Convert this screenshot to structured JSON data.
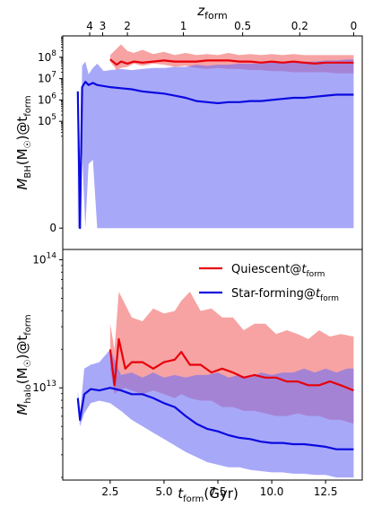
{
  "chart_data": [
    {
      "type": "line",
      "panel": "top",
      "ylabel": "M_BH(M☉)@t_form",
      "ylabel_parts": {
        "base": "M",
        "sub": "BH",
        "mid": "(M",
        "sun": "☉",
        "mid2": ")@t",
        "sub2": "form"
      },
      "xlim": [
        0.3,
        14.2
      ],
      "yscale": "symlog",
      "ylim": [
        -1,
        9
      ],
      "yticks": [
        {
          "value": 0,
          "label": "0"
        },
        {
          "value": 5,
          "label": "10",
          "exp": "5"
        },
        {
          "value": 6,
          "label": "10",
          "exp": "6"
        },
        {
          "value": 7,
          "label": "10",
          "exp": "7"
        },
        {
          "value": 8,
          "label": "10",
          "exp": "8"
        }
      ],
      "top_axis": {
        "label": "z",
        "label_sub": "form",
        "ticks": [
          {
            "t": 1.55,
            "label": "4"
          },
          {
            "t": 2.15,
            "label": "3"
          },
          {
            "t": 3.3,
            "label": "2"
          },
          {
            "t": 5.9,
            "label": "1"
          },
          {
            "t": 8.65,
            "label": "0.5"
          },
          {
            "t": 11.3,
            "label": "0.2"
          },
          {
            "t": 13.8,
            "label": "0"
          }
        ]
      },
      "series": [
        {
          "name": "Quiescent@t_form",
          "color": "#e8000b",
          "t": [
            2.5,
            2.8,
            3.0,
            3.3,
            3.6,
            4.0,
            4.5,
            5.0,
            5.5,
            6.0,
            6.5,
            7.0,
            7.5,
            8.0,
            8.5,
            9.0,
            9.5,
            10.0,
            10.5,
            11.0,
            11.5,
            12.0,
            12.5,
            13.0,
            13.5,
            13.8
          ],
          "median": [
            7.9,
            7.65,
            7.8,
            7.7,
            7.8,
            7.75,
            7.8,
            7.85,
            7.8,
            7.8,
            7.8,
            7.85,
            7.85,
            7.85,
            7.8,
            7.8,
            7.75,
            7.8,
            7.75,
            7.8,
            7.75,
            7.7,
            7.75,
            7.75,
            7.75,
            7.75
          ],
          "upper": [
            8.1,
            8.4,
            8.6,
            8.3,
            8.2,
            8.35,
            8.15,
            8.25,
            8.1,
            8.2,
            8.1,
            8.15,
            8.1,
            8.2,
            8.1,
            8.15,
            8.1,
            8.15,
            8.1,
            8.15,
            8.1,
            8.1,
            8.1,
            8.1,
            8.1,
            8.1
          ],
          "lower": [
            7.8,
            7.4,
            7.5,
            7.55,
            7.7,
            7.6,
            7.7,
            7.65,
            7.55,
            7.6,
            7.5,
            7.45,
            7.5,
            7.45,
            7.45,
            7.4,
            7.4,
            7.35,
            7.35,
            7.3,
            7.3,
            7.3,
            7.3,
            7.25,
            7.25,
            7.25
          ]
        },
        {
          "name": "Star-forming@t_form",
          "color": "#0a0ae0",
          "t": [
            1.0,
            1.1,
            1.2,
            1.35,
            1.5,
            1.7,
            1.9,
            2.2,
            2.5,
            3.0,
            3.5,
            4.0,
            4.5,
            5.0,
            5.5,
            6.0,
            6.5,
            7.0,
            7.5,
            8.0,
            8.5,
            9.0,
            9.5,
            10.0,
            10.5,
            11.0,
            11.5,
            12.0,
            12.5,
            13.0,
            13.5,
            13.8
          ],
          "median": [
            6.4,
            0.0,
            6.6,
            6.85,
            6.7,
            6.8,
            6.7,
            6.65,
            6.6,
            6.55,
            6.5,
            6.4,
            6.35,
            6.3,
            6.2,
            6.1,
            5.95,
            5.9,
            5.85,
            5.9,
            5.9,
            5.95,
            5.95,
            6.0,
            6.05,
            6.1,
            6.1,
            6.15,
            6.2,
            6.25,
            6.25,
            6.25
          ],
          "upper": [
            6.6,
            0.0,
            7.6,
            7.8,
            7.2,
            7.5,
            7.7,
            7.35,
            7.4,
            7.45,
            7.4,
            7.45,
            7.5,
            7.5,
            7.55,
            7.55,
            7.65,
            7.6,
            7.65,
            7.65,
            7.7,
            7.7,
            7.7,
            7.75,
            7.75,
            7.8,
            7.8,
            7.8,
            7.85,
            7.85,
            7.9,
            7.9
          ],
          "lower": [
            0.0,
            0.0,
            3.5,
            0.0,
            3.0,
            3.2,
            0.0,
            0.0,
            0.0,
            0.0,
            0.0,
            0.0,
            0.0,
            0.0,
            0.0,
            0.0,
            0.0,
            0.0,
            0.0,
            0.0,
            0.0,
            0.0,
            0.0,
            0.0,
            0.0,
            0.0,
            0.0,
            0.0,
            0.0,
            0.0,
            0.0,
            0.0
          ]
        }
      ]
    },
    {
      "type": "line",
      "panel": "bottom",
      "xlabel": "t_form(Gyr)",
      "xlabel_parts": {
        "base": "t",
        "sub": "form",
        "rest": "(Gyr)"
      },
      "ylabel": "M_halo(M☉)@t_form",
      "ylabel_parts": {
        "base": "M",
        "sub": "halo",
        "mid": "(M",
        "sun": "☉",
        "mid2": ")@t",
        "sub2": "form"
      },
      "xlim": [
        0.3,
        14.2
      ],
      "yscale": "log",
      "ylim": [
        12.28,
        14.08
      ],
      "xticks": [
        {
          "value": 2.5,
          "label": "2.5"
        },
        {
          "value": 5.0,
          "label": "5.0"
        },
        {
          "value": 7.5,
          "label": "7.5"
        },
        {
          "value": 10.0,
          "label": "10.0"
        },
        {
          "value": 12.5,
          "label": "12.5"
        }
      ],
      "yticks": [
        {
          "value": 13,
          "label": "10",
          "exp": "13"
        },
        {
          "value": 14,
          "label": "10",
          "exp": "14"
        }
      ],
      "legend": {
        "placement": "upper-right"
      },
      "series": [
        {
          "name": "Quiescent@t_form",
          "color": "#e8000b",
          "t": [
            2.5,
            2.7,
            2.9,
            3.2,
            3.5,
            4.0,
            4.5,
            5.0,
            5.5,
            5.8,
            6.2,
            6.7,
            7.2,
            7.7,
            8.2,
            8.7,
            9.2,
            9.7,
            10.2,
            10.7,
            11.2,
            11.7,
            12.2,
            12.7,
            13.2,
            13.8
          ],
          "median": [
            13.3,
            13.02,
            13.38,
            13.15,
            13.2,
            13.2,
            13.15,
            13.2,
            13.22,
            13.28,
            13.18,
            13.18,
            13.12,
            13.15,
            13.12,
            13.08,
            13.1,
            13.08,
            13.08,
            13.05,
            13.05,
            13.02,
            13.02,
            13.05,
            13.02,
            12.98
          ],
          "upper": [
            13.5,
            13.3,
            13.75,
            13.65,
            13.55,
            13.52,
            13.62,
            13.58,
            13.6,
            13.68,
            13.75,
            13.6,
            13.62,
            13.55,
            13.55,
            13.45,
            13.5,
            13.5,
            13.42,
            13.45,
            13.42,
            13.38,
            13.45,
            13.4,
            13.42,
            13.4
          ],
          "lower": [
            13.15,
            12.95,
            12.98,
            13.0,
            12.98,
            12.95,
            12.98,
            12.95,
            12.92,
            12.95,
            12.92,
            12.9,
            12.9,
            12.85,
            12.85,
            12.82,
            12.82,
            12.8,
            12.78,
            12.78,
            12.8,
            12.78,
            12.78,
            12.75,
            12.75,
            12.72
          ]
        },
        {
          "name": "Star-forming@t_form",
          "color": "#0a0ae0",
          "t": [
            1.0,
            1.1,
            1.3,
            1.6,
            2.0,
            2.5,
            3.0,
            3.5,
            4.0,
            4.5,
            5.0,
            5.5,
            6.0,
            6.5,
            7.0,
            7.5,
            8.0,
            8.5,
            9.0,
            9.5,
            10.0,
            10.5,
            11.0,
            11.5,
            12.0,
            12.5,
            13.0,
            13.5,
            13.8
          ],
          "median": [
            12.92,
            12.75,
            12.95,
            12.99,
            12.98,
            13.0,
            12.98,
            12.95,
            12.95,
            12.92,
            12.88,
            12.85,
            12.78,
            12.72,
            12.68,
            12.66,
            12.63,
            12.61,
            12.6,
            12.58,
            12.57,
            12.57,
            12.56,
            12.56,
            12.55,
            12.54,
            12.52,
            12.52,
            12.52
          ],
          "upper": [
            12.98,
            12.8,
            13.15,
            13.18,
            13.2,
            13.3,
            13.1,
            13.12,
            13.08,
            13.12,
            13.08,
            13.1,
            13.08,
            13.1,
            13.1,
            13.12,
            13.08,
            13.1,
            13.08,
            13.12,
            13.1,
            13.12,
            13.12,
            13.15,
            13.12,
            13.15,
            13.12,
            13.15,
            13.15
          ],
          "lower": [
            12.85,
            12.7,
            12.8,
            12.88,
            12.9,
            12.88,
            12.82,
            12.75,
            12.7,
            12.65,
            12.6,
            12.55,
            12.5,
            12.46,
            12.42,
            12.4,
            12.38,
            12.38,
            12.36,
            12.35,
            12.34,
            12.34,
            12.33,
            12.33,
            12.32,
            12.32,
            12.3,
            12.3,
            12.3
          ]
        }
      ]
    }
  ]
}
